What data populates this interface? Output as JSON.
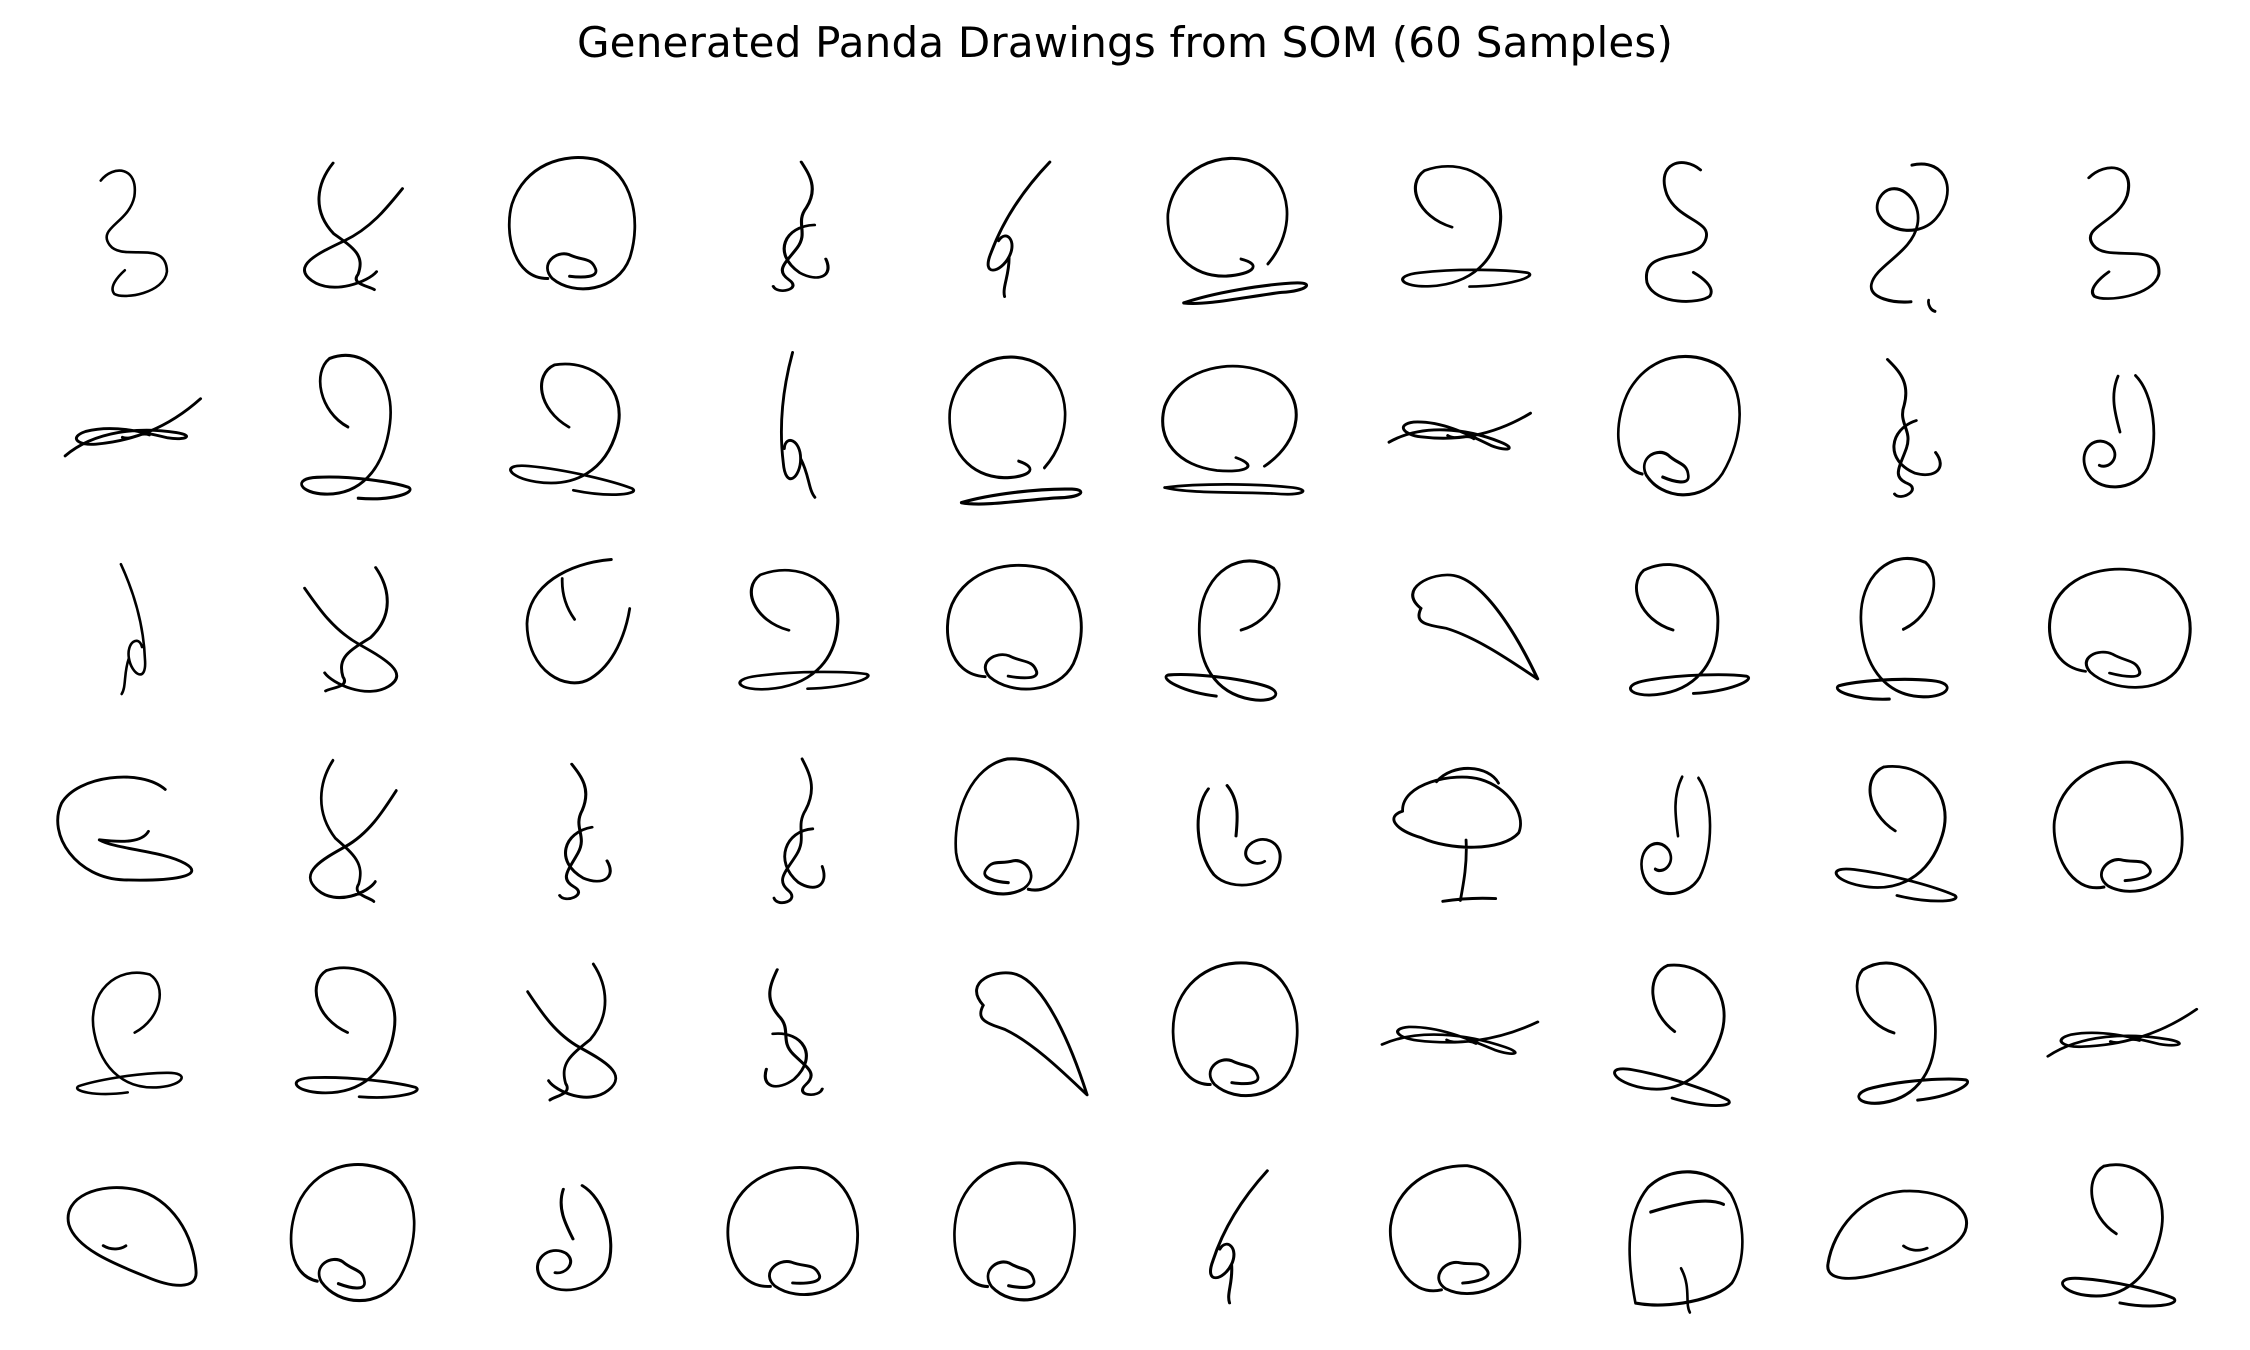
{
  "figure": {
    "title": "Generated Panda Drawings from SOM (60 Samples)"
  },
  "samples": [
    {
      "id": 1,
      "shape": "s-hook"
    },
    {
      "id": 2,
      "shape": "scribble"
    },
    {
      "id": 3,
      "shape": "circle"
    },
    {
      "id": 4,
      "shape": "vertical-scribble"
    },
    {
      "id": 5,
      "shape": "vertical-hook"
    },
    {
      "id": 6,
      "shape": "circle-loop"
    },
    {
      "id": 7,
      "shape": "loop"
    },
    {
      "id": 8,
      "shape": "s-hook"
    },
    {
      "id": 9,
      "shape": "figure-eight"
    },
    {
      "id": 10,
      "shape": "s-hook"
    },
    {
      "id": 11,
      "shape": "horizontal-scribble"
    },
    {
      "id": 12,
      "shape": "loop"
    },
    {
      "id": 13,
      "shape": "loop"
    },
    {
      "id": 14,
      "shape": "vertical-hook"
    },
    {
      "id": 15,
      "shape": "circle-loop"
    },
    {
      "id": 16,
      "shape": "circle-loop"
    },
    {
      "id": 17,
      "shape": "horizontal-scribble"
    },
    {
      "id": 18,
      "shape": "circle"
    },
    {
      "id": 19,
      "shape": "vertical-scribble"
    },
    {
      "id": 20,
      "shape": "spiral"
    },
    {
      "id": 21,
      "shape": "vertical-hook"
    },
    {
      "id": 22,
      "shape": "scribble"
    },
    {
      "id": 23,
      "shape": "arc"
    },
    {
      "id": 24,
      "shape": "loop"
    },
    {
      "id": 25,
      "shape": "circle"
    },
    {
      "id": 26,
      "shape": "loop"
    },
    {
      "id": 27,
      "shape": "teardrop"
    },
    {
      "id": 28,
      "shape": "loop"
    },
    {
      "id": 29,
      "shape": "loop"
    },
    {
      "id": 30,
      "shape": "circle"
    },
    {
      "id": 31,
      "shape": "c-loop"
    },
    {
      "id": 32,
      "shape": "scribble"
    },
    {
      "id": 33,
      "shape": "vertical-scribble"
    },
    {
      "id": 34,
      "shape": "vertical-scribble"
    },
    {
      "id": 35,
      "shape": "circle"
    },
    {
      "id": 36,
      "shape": "spiral"
    },
    {
      "id": 37,
      "shape": "mushroom"
    },
    {
      "id": 38,
      "shape": "spiral"
    },
    {
      "id": 39,
      "shape": "loop"
    },
    {
      "id": 40,
      "shape": "circle"
    },
    {
      "id": 41,
      "shape": "loop"
    },
    {
      "id": 42,
      "shape": "loop"
    },
    {
      "id": 43,
      "shape": "scribble"
    },
    {
      "id": 44,
      "shape": "vertical-scribble"
    },
    {
      "id": 45,
      "shape": "teardrop"
    },
    {
      "id": 46,
      "shape": "circle"
    },
    {
      "id": 47,
      "shape": "horizontal-scribble"
    },
    {
      "id": 48,
      "shape": "loop"
    },
    {
      "id": 49,
      "shape": "loop"
    },
    {
      "id": 50,
      "shape": "horizontal-scribble"
    },
    {
      "id": 51,
      "shape": "ellipse"
    },
    {
      "id": 52,
      "shape": "circle"
    },
    {
      "id": 53,
      "shape": "spiral"
    },
    {
      "id": 54,
      "shape": "circle"
    },
    {
      "id": 55,
      "shape": "circle"
    },
    {
      "id": 56,
      "shape": "vertical-hook"
    },
    {
      "id": 57,
      "shape": "circle"
    },
    {
      "id": 58,
      "shape": "dome"
    },
    {
      "id": 59,
      "shape": "ellipse"
    },
    {
      "id": 60,
      "shape": "loop"
    }
  ]
}
